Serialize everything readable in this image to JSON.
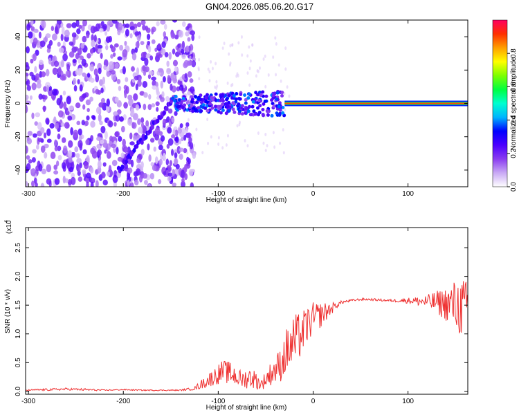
{
  "title": "GN04.2026.085.06.20.G17",
  "chart_data": [
    {
      "type": "heatmap",
      "xlabel": "Height of straight line (km)",
      "ylabel": "Frequency (Hz)",
      "xlim": [
        -303,
        163
      ],
      "ylim": [
        -50,
        50
      ],
      "xticks": [
        -300,
        -200,
        -100,
        0,
        100
      ],
      "yticks": [
        -40,
        -20,
        0,
        20,
        40
      ],
      "colorbar": {
        "label": "Normalized spectral amplitude",
        "range": [
          0.0,
          1.0
        ],
        "ticks": [
          0.0,
          0.2,
          0.4,
          0.6,
          0.8
        ],
        "colors": [
          "#ffffff",
          "#c9a9f5",
          "#8a3cf0",
          "#4b00ff",
          "#0000ff",
          "#00b4ff",
          "#00ffd0",
          "#00ff40",
          "#7dff00",
          "#ffff00",
          "#ffa000",
          "#ff3000",
          "#ff0060"
        ]
      },
      "features": {
        "noise_region_km": [
          -303,
          -135
        ],
        "diagonal_track": {
          "start": [
            -205,
            -40
          ],
          "end": [
            -150,
            0
          ]
        },
        "scatter_band_km": [
          -150,
          -30
        ],
        "steady_line_km": [
          -30,
          163
        ],
        "steady_line_freq": 0,
        "steady_line_amplitude": 0.9
      },
      "legend": "none",
      "grid": false
    },
    {
      "type": "line",
      "xlabel": "Height of straight line (km)",
      "ylabel": "SNR (10 * v/v)",
      "multiplier": "(x10",
      "multiplier_exp": "4",
      "xlim": [
        -303,
        163
      ],
      "ylim": [
        -0.05,
        2.85
      ],
      "xticks": [
        -300,
        -200,
        -100,
        0,
        100
      ],
      "yticks": [
        0.0,
        0.5,
        1.0,
        1.5,
        2.0,
        2.5
      ],
      "color": "#ee3030",
      "series": [
        {
          "x": [
            -303,
            -280,
            -260,
            -240,
            -220,
            -200,
            -180,
            -160,
            -140,
            -125,
            -115,
            -105,
            -95,
            -85,
            -75,
            -65,
            -55,
            -45,
            -35,
            -28,
            -22,
            -18,
            -12,
            -8,
            -4,
            0,
            5,
            10,
            15,
            20,
            25,
            30,
            40,
            50,
            60,
            70,
            80,
            90,
            100,
            110,
            120,
            130,
            140,
            150,
            157,
            163
          ],
          "y": [
            0.02,
            0.03,
            0.04,
            0.03,
            0.02,
            0.03,
            0.02,
            0.02,
            0.02,
            0.05,
            0.15,
            0.25,
            0.35,
            0.3,
            0.2,
            0.25,
            0.12,
            0.3,
            0.45,
            0.7,
            0.8,
            0.9,
            1.0,
            1.1,
            1.2,
            1.25,
            1.3,
            1.35,
            1.4,
            1.45,
            1.5,
            1.55,
            1.58,
            1.6,
            1.6,
            1.59,
            1.58,
            1.58,
            1.58,
            1.57,
            1.56,
            1.55,
            1.52,
            1.5,
            1.45,
            1.45
          ],
          "noise": [
            0.01,
            0.02,
            0.02,
            0.02,
            0.01,
            0.01,
            0.01,
            0.01,
            0.01,
            0.03,
            0.1,
            0.15,
            0.2,
            0.2,
            0.15,
            0.2,
            0.1,
            0.2,
            0.3,
            0.4,
            0.5,
            0.45,
            0.4,
            0.35,
            0.3,
            0.3,
            0.25,
            0.2,
            0.15,
            0.1,
            0.05,
            0.03,
            0.02,
            0.02,
            0.02,
            0.02,
            0.02,
            0.03,
            0.05,
            0.08,
            0.12,
            0.2,
            0.3,
            0.45,
            0.55,
            0.45
          ]
        }
      ],
      "legend": "none",
      "grid": false
    }
  ]
}
